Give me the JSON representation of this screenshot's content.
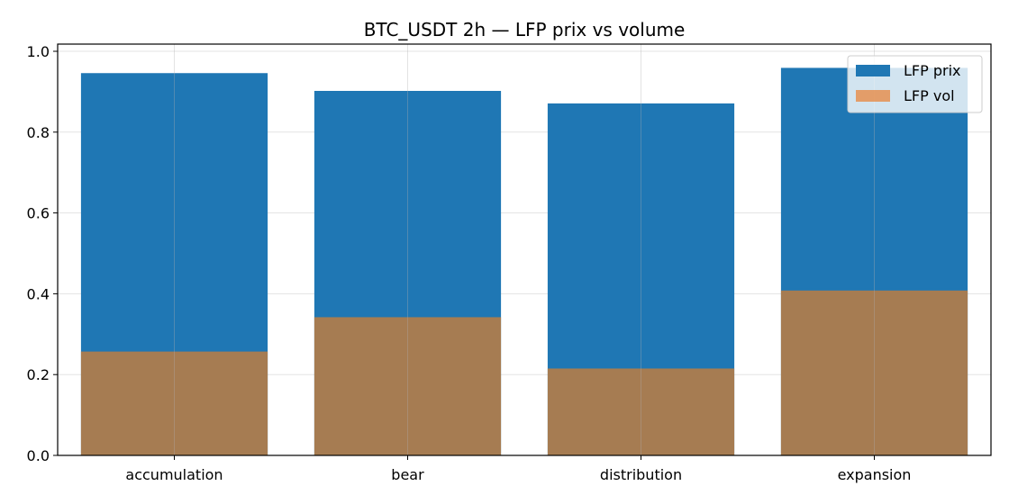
{
  "chart_data": {
    "type": "bar",
    "title": "BTC_USDT 2h — LFP prix vs volume",
    "xlabel": "",
    "ylabel": "",
    "categories": [
      "accumulation",
      "bear",
      "distribution",
      "expansion"
    ],
    "series": [
      {
        "name": "LFP prix",
        "values": [
          0.946,
          0.902,
          0.871,
          0.959
        ],
        "color": "#1f77b4"
      },
      {
        "name": "LFP vol",
        "values": [
          0.257,
          0.342,
          0.215,
          0.408
        ],
        "color": "#e8853c"
      }
    ],
    "ylim": [
      0,
      1.0
    ],
    "yticks": [
      "0.0",
      "0.2",
      "0.4",
      "0.6",
      "0.8",
      "1.0"
    ],
    "grid": true,
    "legend_position": "top-right",
    "overlay_color": "#a67c52"
  }
}
